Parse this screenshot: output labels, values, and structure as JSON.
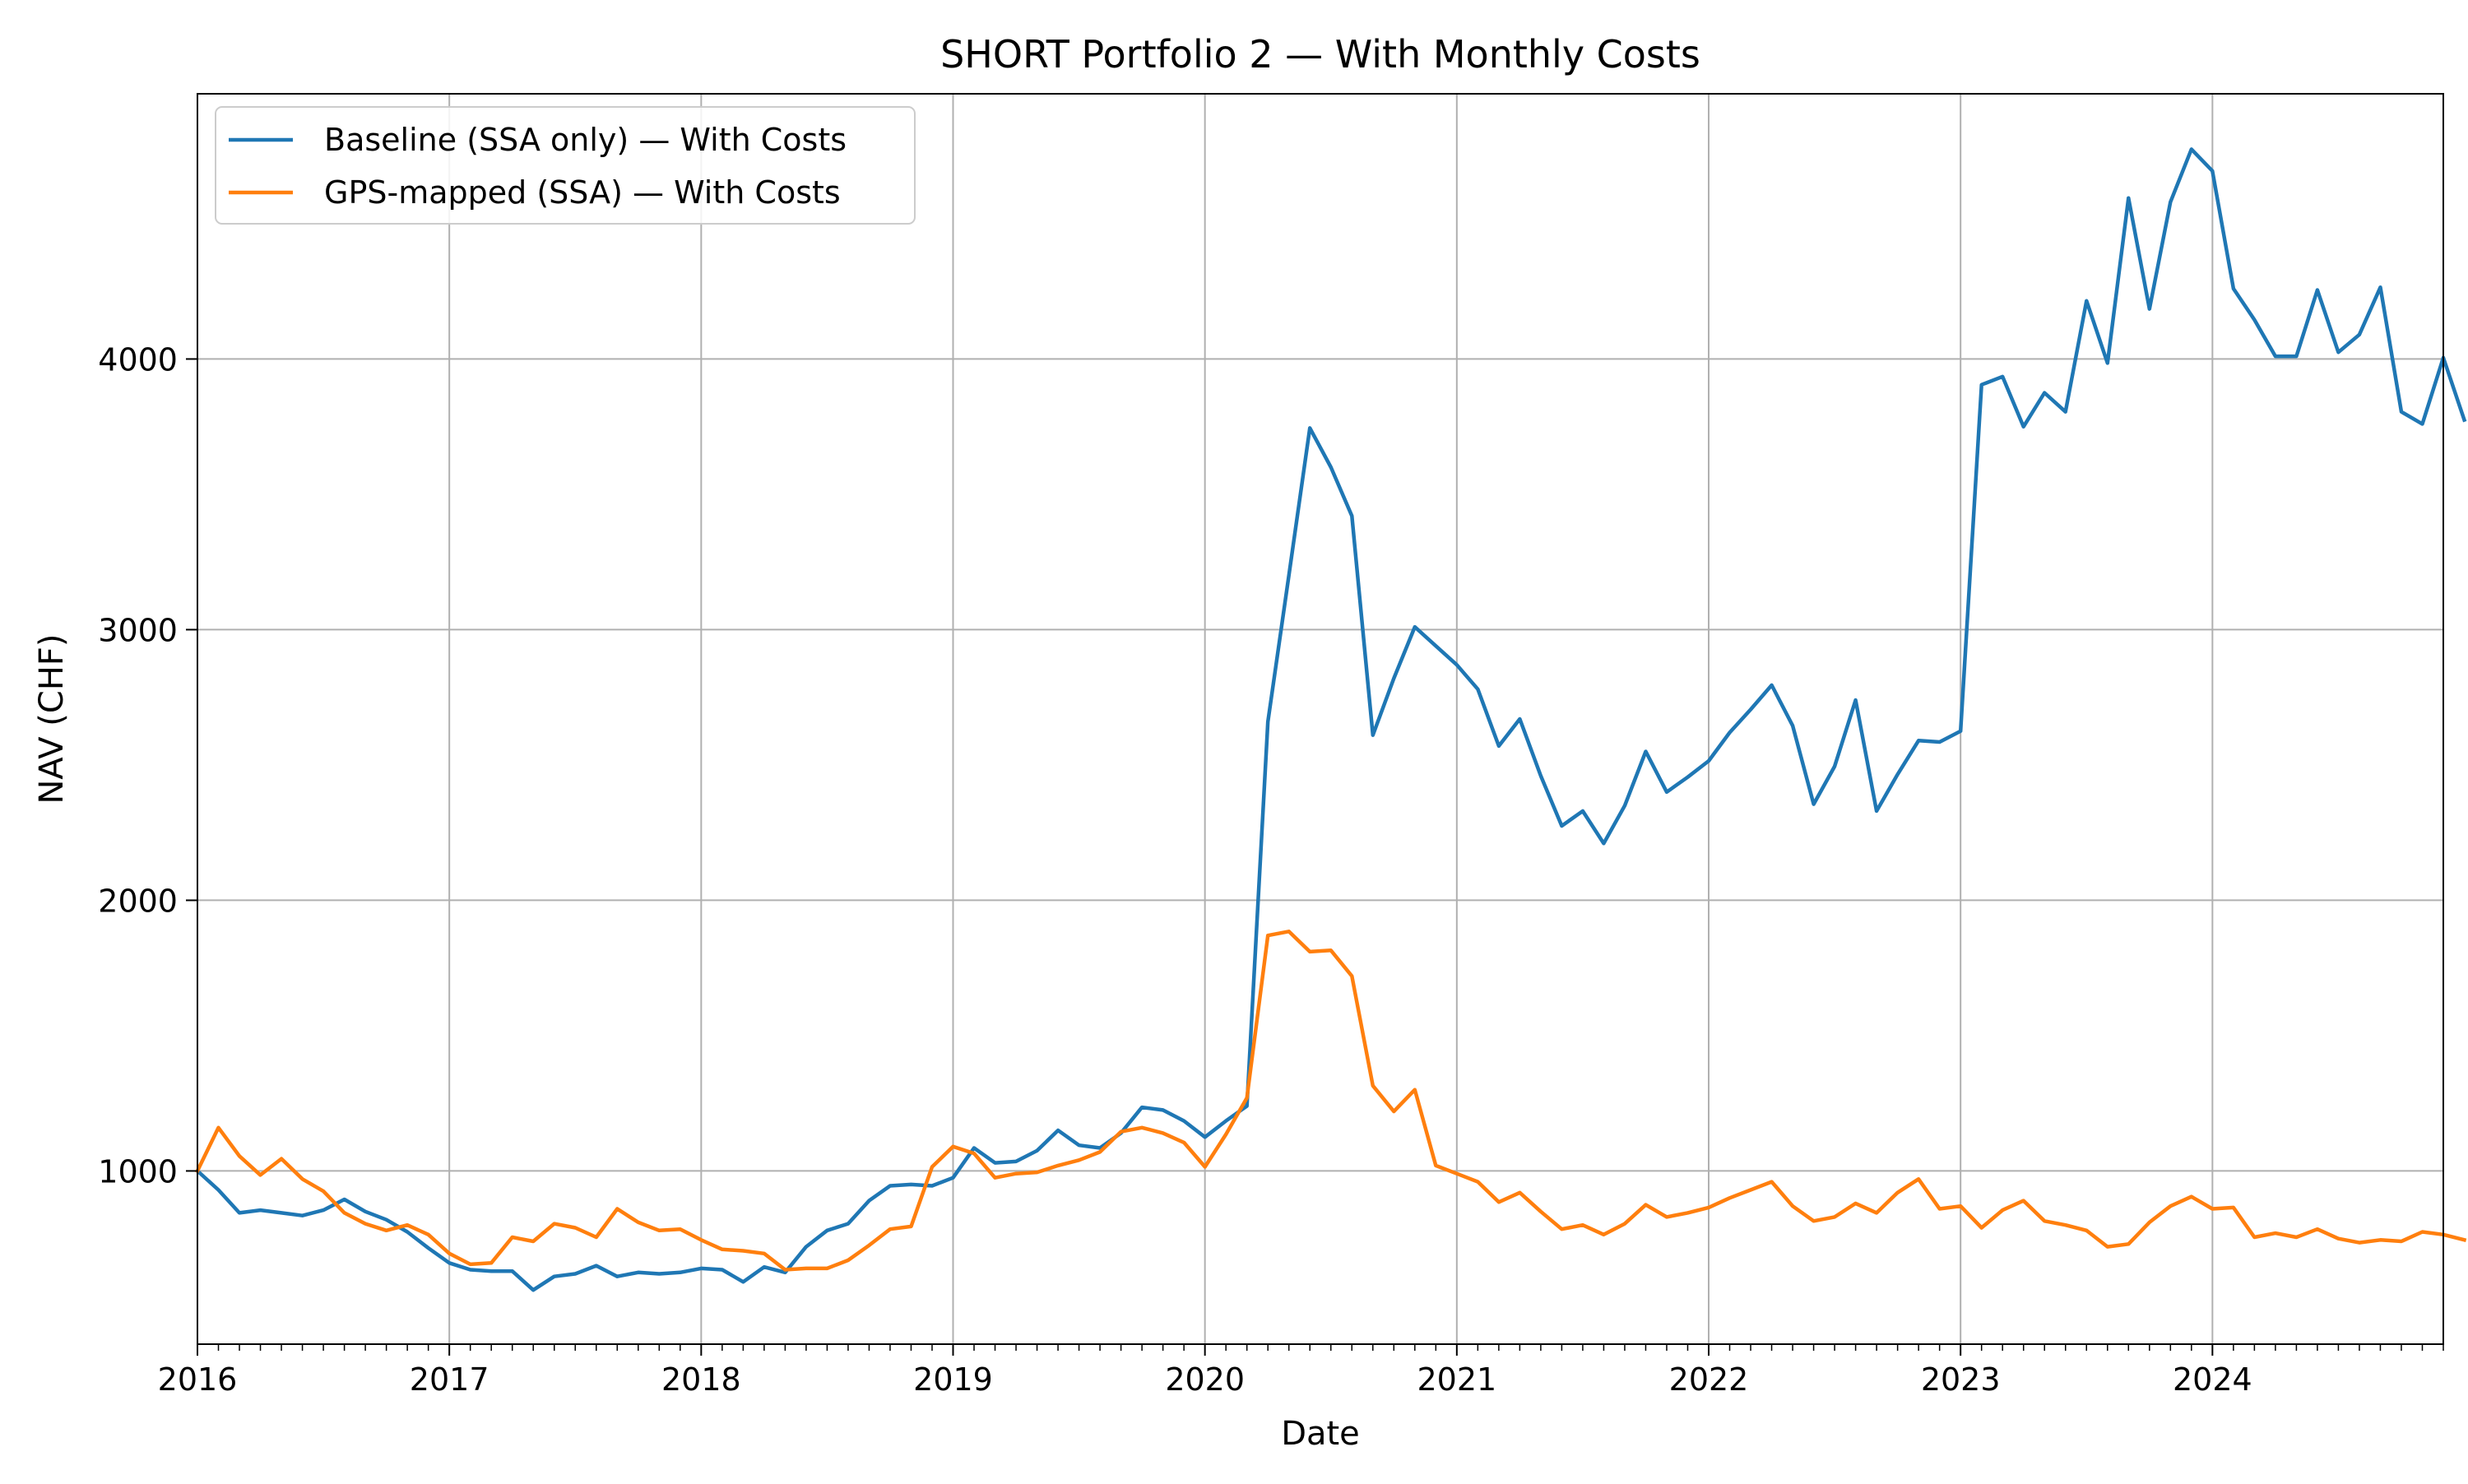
{
  "chart_data": {
    "type": "line",
    "title": "SHORT Portfolio 2 — With Monthly Costs",
    "xlabel": "Date",
    "ylabel": "NAV (CHF)",
    "x_start": "2016-01",
    "x_frequency": "monthly",
    "xlim": [
      "2016-01",
      "2024-12"
    ],
    "ylim": [
      360,
      4980
    ],
    "x_ticks": [
      "2016",
      "2017",
      "2018",
      "2019",
      "2020",
      "2021",
      "2022",
      "2023",
      "2024"
    ],
    "y_ticks": [
      1000,
      2000,
      3000,
      4000
    ],
    "grid": true,
    "legend_position": "upper left",
    "series": [
      {
        "name": "Baseline (SSA only) — With Costs",
        "color": "#1f77b4",
        "values": [
          1000,
          930,
          845,
          855,
          845,
          835,
          855,
          895,
          850,
          820,
          775,
          715,
          660,
          635,
          630,
          630,
          560,
          610,
          620,
          650,
          610,
          625,
          620,
          625,
          640,
          635,
          590,
          645,
          625,
          720,
          780,
          805,
          890,
          945,
          950,
          945,
          975,
          1085,
          1030,
          1035,
          1075,
          1150,
          1095,
          1085,
          1140,
          1235,
          1225,
          1185,
          1125,
          1185,
          1240,
          2660,
          3200,
          3745,
          3600,
          3420,
          2610,
          2820,
          3010,
          2940,
          2870,
          2780,
          2570,
          2670,
          2460,
          2275,
          2330,
          2210,
          2350,
          2550,
          2400,
          2455,
          2515,
          2620,
          2705,
          2795,
          2645,
          2355,
          2495,
          2740,
          2330,
          2465,
          2590,
          2585,
          2625,
          3905,
          3935,
          3750,
          3875,
          3805,
          4215,
          3985,
          4595,
          4185,
          4580,
          4775,
          4695,
          4260,
          4145,
          4010,
          4010,
          4255,
          4025,
          4090,
          4265,
          3805,
          3760,
          4005,
          3775
        ]
      },
      {
        "name": "GPS-mapped (SSA) — With Costs",
        "color": "#ff7f0e",
        "values": [
          1000,
          1160,
          1055,
          985,
          1045,
          970,
          925,
          845,
          805,
          780,
          800,
          765,
          695,
          655,
          660,
          755,
          740,
          805,
          790,
          755,
          860,
          810,
          780,
          785,
          745,
          710,
          705,
          695,
          635,
          640,
          640,
          670,
          725,
          785,
          795,
          1015,
          1090,
          1065,
          975,
          990,
          995,
          1020,
          1040,
          1070,
          1145,
          1160,
          1140,
          1105,
          1015,
          1135,
          1270,
          1870,
          1885,
          1810,
          1815,
          1720,
          1315,
          1220,
          1300,
          1020,
          990,
          960,
          885,
          920,
          850,
          785,
          800,
          765,
          805,
          875,
          830,
          845,
          865,
          900,
          930,
          960,
          870,
          815,
          830,
          880,
          845,
          920,
          970,
          860,
          870,
          790,
          855,
          890,
          815,
          800,
          780,
          720,
          730,
          810,
          870,
          905,
          860,
          865,
          755,
          770,
          755,
          785,
          750,
          735,
          745,
          740,
          775,
          765,
          745
        ]
      }
    ]
  }
}
